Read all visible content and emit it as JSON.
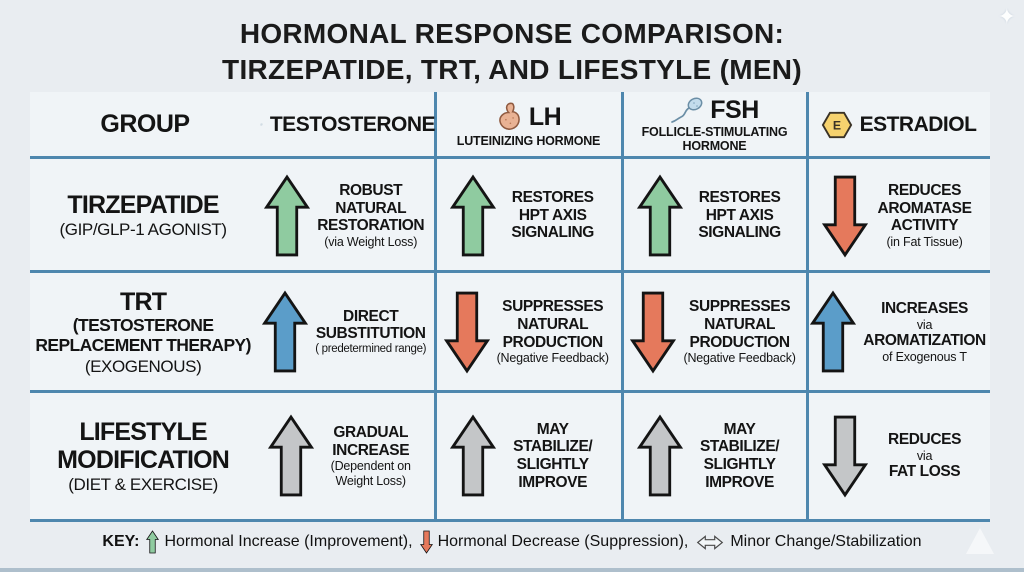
{
  "title": {
    "line1": "HORMONAL RESPONSE COMPARISON:",
    "line2": "TIRZEPATIDE, TRT, AND LIFESTYLE (MEN)"
  },
  "columns": [
    {
      "key": "group",
      "label": "GROUP",
      "icon": null
    },
    {
      "key": "testosterone",
      "label": "TESTOSTERONE",
      "icon": "testosterone-molecule-icon"
    },
    {
      "key": "lh",
      "label": "LH",
      "sub": "LUTEINIZING HORMONE",
      "icon": "pituitary-gland-icon"
    },
    {
      "key": "fsh",
      "label": "FSH",
      "sub": "FOLLICLE-STIMULATING HORMONE",
      "icon": "sperm-icon"
    },
    {
      "key": "estradiol",
      "label": "ESTRADIOL",
      "icon": "estradiol-molecule-icon"
    }
  ],
  "rows": [
    {
      "group": {
        "lines": [
          {
            "t": "TIRZEPATIDE",
            "s": "name"
          },
          {
            "t": "(GIP/GLP-1 AGONIST)",
            "s": "sub"
          }
        ]
      },
      "cells": [
        {
          "arrow": "up",
          "color": "green",
          "lines": [
            {
              "t": "ROBUST",
              "s": "strong"
            },
            {
              "t": "NATURAL",
              "s": "strong"
            },
            {
              "t": "RESTORATION",
              "s": "strong"
            },
            {
              "t": "(via Weight Loss)",
              "s": "note"
            }
          ]
        },
        {
          "arrow": "up",
          "color": "green",
          "lines": [
            {
              "t": "RESTORES",
              "s": "strong"
            },
            {
              "t": "HPT AXIS",
              "s": "strong"
            },
            {
              "t": "SIGNALING",
              "s": "strong"
            }
          ]
        },
        {
          "arrow": "up",
          "color": "green",
          "lines": [
            {
              "t": "RESTORES",
              "s": "strong"
            },
            {
              "t": "HPT AXIS",
              "s": "strong"
            },
            {
              "t": "SIGNALING",
              "s": "strong"
            }
          ]
        },
        {
          "arrow": "down",
          "color": "red",
          "lines": [
            {
              "t": "REDUCES",
              "s": "strong"
            },
            {
              "t": "AROMATASE",
              "s": "strong"
            },
            {
              "t": "ACTIVITY",
              "s": "strong"
            },
            {
              "t": "(in Fat Tissue)",
              "s": "note"
            }
          ]
        }
      ]
    },
    {
      "group": {
        "lines": [
          {
            "t": "TRT",
            "s": "name"
          },
          {
            "t": "(TESTOSTERONE",
            "s": "name2"
          },
          {
            "t": "REPLACEMENT THERAPY)",
            "s": "name2"
          },
          {
            "t": "(EXOGENOUS)",
            "s": "sub"
          }
        ]
      },
      "cells": [
        {
          "arrow": "up",
          "color": "blue",
          "lines": [
            {
              "t": "DIRECT",
              "s": "strong"
            },
            {
              "t": "SUBSTITUTION",
              "s": "strong"
            },
            {
              "t": "( predetermined range)",
              "s": "note-sm"
            }
          ]
        },
        {
          "arrow": "down",
          "color": "red",
          "lines": [
            {
              "t": "SUPPRESSES",
              "s": "strong"
            },
            {
              "t": "NATURAL",
              "s": "strong"
            },
            {
              "t": "PRODUCTION",
              "s": "strong"
            },
            {
              "t": "(Negative Feedback)",
              "s": "note"
            }
          ]
        },
        {
          "arrow": "down",
          "color": "red",
          "lines": [
            {
              "t": "SUPPRESSES",
              "s": "strong"
            },
            {
              "t": "NATURAL",
              "s": "strong"
            },
            {
              "t": "PRODUCTION",
              "s": "strong"
            },
            {
              "t": "(Negative Feedback)",
              "s": "note"
            }
          ]
        },
        {
          "arrow": "up",
          "color": "blue",
          "lines": [
            {
              "t": "INCREASES",
              "s": "strong"
            },
            {
              "t": "via",
              "s": "note"
            },
            {
              "t": "AROMATIZATION",
              "s": "strong"
            },
            {
              "t": "of Exogenous T",
              "s": "note"
            }
          ]
        }
      ]
    },
    {
      "group": {
        "lines": [
          {
            "t": "LIFESTYLE",
            "s": "name"
          },
          {
            "t": "MODIFICATION",
            "s": "name"
          },
          {
            "t": "(DIET & EXERCISE)",
            "s": "sub"
          }
        ]
      },
      "cells": [
        {
          "arrow": "up",
          "color": "gray",
          "lines": [
            {
              "t": "GRADUAL",
              "s": "strong"
            },
            {
              "t": "INCREASE",
              "s": "strong"
            },
            {
              "t": "(Dependent on",
              "s": "note"
            },
            {
              "t": "Weight Loss)",
              "s": "note"
            }
          ]
        },
        {
          "arrow": "up",
          "color": "gray",
          "lines": [
            {
              "t": "MAY",
              "s": "strong"
            },
            {
              "t": "STABILIZE/",
              "s": "strong"
            },
            {
              "t": "SLIGHTLY",
              "s": "strong"
            },
            {
              "t": "IMPROVE",
              "s": "strong"
            }
          ]
        },
        {
          "arrow": "up",
          "color": "gray",
          "lines": [
            {
              "t": "MAY",
              "s": "strong"
            },
            {
              "t": "STABILIZE/",
              "s": "strong"
            },
            {
              "t": "SLIGHTLY",
              "s": "strong"
            },
            {
              "t": "IMPROVE",
              "s": "strong"
            }
          ]
        },
        {
          "arrow": "down",
          "color": "gray",
          "lines": [
            {
              "t": "REDUCES",
              "s": "strong"
            },
            {
              "t": "via",
              "s": "note"
            },
            {
              "t": "FAT LOSS",
              "s": "strong"
            }
          ]
        }
      ]
    }
  ],
  "key": {
    "label": "KEY:",
    "items": [
      {
        "icon": "up-arrow-icon",
        "color": "green",
        "text": "Hormonal Increase (Improvement),"
      },
      {
        "icon": "down-arrow-icon",
        "color": "red",
        "text": "Hormonal Decrease (Suppression),"
      },
      {
        "icon": "double-arrow-icon",
        "color": "neutral",
        "text": "Minor Change/Stabilization"
      }
    ]
  },
  "colors": {
    "green": "#8fcba0",
    "blue": "#5b9dc9",
    "red": "#e5795c",
    "gray": "#c4c6c8",
    "grid": "#4e87ae",
    "arrow_outline": "#141414",
    "cell_bg": "#f0f4f7",
    "page_bg": "#e9edf1"
  }
}
